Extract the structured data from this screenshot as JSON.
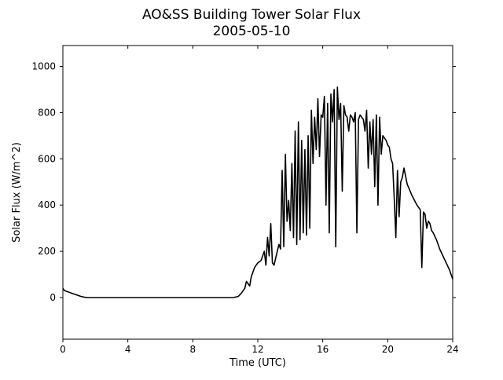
{
  "chart_data": {
    "type": "line",
    "title": "AO&SS Building Tower Solar Flux",
    "subtitle": "2005-05-10",
    "xlabel": "Time (UTC)",
    "ylabel": "Solar Flux (W/m^2)",
    "xlim": [
      0,
      24
    ],
    "ylim": [
      -180,
      1090
    ],
    "xticks": [
      0,
      4,
      8,
      12,
      16,
      20,
      24
    ],
    "yticks": [
      0,
      200,
      400,
      600,
      800,
      1000
    ],
    "grid": false,
    "line_color": "#000000",
    "series": [
      {
        "x": [
          0,
          0.1,
          0.3,
          0.5,
          0.7,
          0.9,
          1.1,
          1.3,
          1.5,
          2,
          4,
          8,
          10.5,
          10.8,
          11.0,
          11.2,
          11.3,
          11.5,
          11.6,
          11.8,
          12.0,
          12.2,
          12.4,
          12.5,
          12.6,
          12.7,
          12.8,
          12.9,
          13.0,
          13.1,
          13.2,
          13.3,
          13.4,
          13.5,
          13.6,
          13.7,
          13.8,
          13.9,
          14.0,
          14.1,
          14.2,
          14.3,
          14.4,
          14.5,
          14.6,
          14.7,
          14.8,
          14.9,
          15.0,
          15.1,
          15.2,
          15.3,
          15.4,
          15.5,
          15.6,
          15.7,
          15.8,
          15.9,
          16.0,
          16.1,
          16.2,
          16.3,
          16.4,
          16.5,
          16.6,
          16.7,
          16.8,
          16.9,
          17.0,
          17.1,
          17.2,
          17.3,
          17.4,
          17.5,
          17.6,
          17.7,
          17.8,
          17.9,
          18.0,
          18.1,
          18.2,
          18.3,
          18.4,
          18.5,
          18.6,
          18.7,
          18.8,
          18.9,
          19.0,
          19.1,
          19.2,
          19.3,
          19.4,
          19.5,
          19.6,
          19.7,
          19.8,
          19.9,
          20.0,
          20.1,
          20.2,
          20.3,
          20.4,
          20.5,
          20.6,
          20.7,
          20.8,
          20.9,
          21.0,
          21.2,
          21.5,
          21.8,
          22.0,
          22.1,
          22.2,
          22.3,
          22.4,
          22.5,
          22.6,
          22.7,
          22.8,
          23.0,
          23.2,
          23.4,
          23.6,
          23.8,
          24.0
        ],
        "y": [
          40,
          30,
          25,
          20,
          15,
          10,
          5,
          2,
          0,
          0,
          0,
          0,
          0,
          5,
          20,
          40,
          70,
          50,
          90,
          130,
          150,
          160,
          200,
          140,
          260,
          180,
          320,
          150,
          140,
          170,
          200,
          230,
          210,
          550,
          220,
          620,
          330,
          420,
          290,
          580,
          260,
          720,
          230,
          760,
          250,
          680,
          280,
          640,
          270,
          700,
          300,
          810,
          580,
          780,
          640,
          860,
          610,
          790,
          780,
          870,
          400,
          840,
          280,
          880,
          760,
          900,
          220,
          910,
          770,
          840,
          460,
          830,
          790,
          780,
          720,
          790,
          780,
          760,
          800,
          280,
          770,
          790,
          780,
          770,
          720,
          810,
          560,
          760,
          620,
          770,
          480,
          790,
          400,
          780,
          620,
          700,
          690,
          680,
          660,
          650,
          600,
          580,
          430,
          260,
          550,
          350,
          500,
          520,
          560,
          490,
          440,
          400,
          380,
          130,
          370,
          360,
          300,
          330,
          320,
          290,
          280,
          250,
          210,
          180,
          150,
          120,
          80
        ]
      }
    ]
  }
}
